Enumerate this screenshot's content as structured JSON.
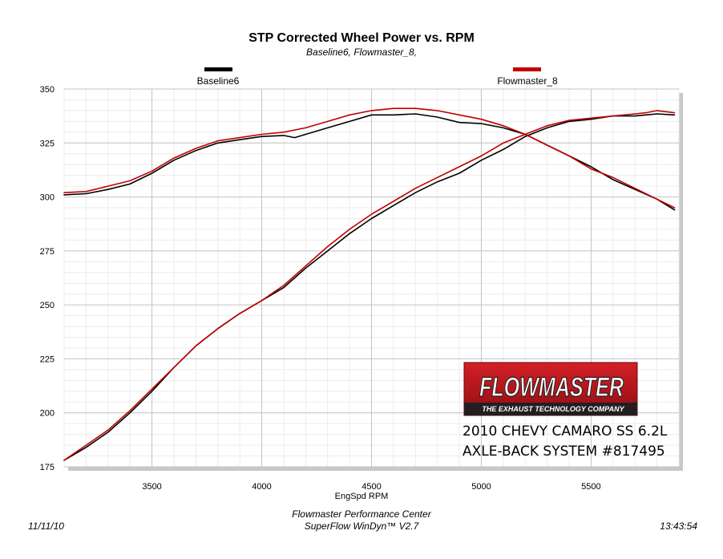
{
  "chart_data": {
    "type": "line",
    "title": "STP Corrected Wheel Power vs. RPM",
    "subtitle": "Baseline6, Flowmaster_8,",
    "xlabel": "EngSpd  RPM",
    "ylabel": "",
    "xlim": [
      3100,
      5900
    ],
    "ylim": [
      175,
      350
    ],
    "x_ticks": [
      3500,
      4000,
      4500,
      5000,
      5500
    ],
    "y_ticks": [
      175,
      200,
      225,
      250,
      275,
      300,
      325,
      350
    ],
    "grid": true,
    "legend_position": "top",
    "series": [
      {
        "name": "Baseline6",
        "color": "#000000",
        "curves": [
          {
            "role": "power",
            "points": [
              [
                3100,
                301
              ],
              [
                3200,
                301.5
              ],
              [
                3300,
                303.5
              ],
              [
                3400,
                306
              ],
              [
                3500,
                311
              ],
              [
                3600,
                317
              ],
              [
                3700,
                321.5
              ],
              [
                3800,
                325
              ],
              [
                3900,
                326.5
              ],
              [
                4000,
                328
              ],
              [
                4100,
                328.5
              ],
              [
                4150,
                327.5
              ],
              [
                4200,
                329
              ],
              [
                4300,
                332
              ],
              [
                4400,
                335
              ],
              [
                4500,
                338
              ],
              [
                4600,
                338
              ],
              [
                4700,
                338.5
              ],
              [
                4800,
                337
              ],
              [
                4900,
                334.5
              ],
              [
                5000,
                334
              ],
              [
                5100,
                332
              ],
              [
                5200,
                329
              ],
              [
                5300,
                324
              ],
              [
                5400,
                319
              ],
              [
                5500,
                314
              ],
              [
                5600,
                308
              ],
              [
                5700,
                303.5
              ],
              [
                5800,
                299
              ],
              [
                5880,
                294
              ]
            ]
          },
          {
            "role": "torque",
            "points": [
              [
                3100,
                178
              ],
              [
                3200,
                184
              ],
              [
                3300,
                191
              ],
              [
                3400,
                200
              ],
              [
                3500,
                210
              ],
              [
                3600,
                221
              ],
              [
                3700,
                231
              ],
              [
                3800,
                239
              ],
              [
                3900,
                246
              ],
              [
                4000,
                252
              ],
              [
                4100,
                258
              ],
              [
                4200,
                267
              ],
              [
                4300,
                275
              ],
              [
                4400,
                283
              ],
              [
                4500,
                290
              ],
              [
                4600,
                296
              ],
              [
                4700,
                302
              ],
              [
                4800,
                307
              ],
              [
                4900,
                311
              ],
              [
                5000,
                317
              ],
              [
                5100,
                322
              ],
              [
                5200,
                328
              ],
              [
                5300,
                332
              ],
              [
                5400,
                335
              ],
              [
                5500,
                336
              ],
              [
                5600,
                337.5
              ],
              [
                5700,
                337.5
              ],
              [
                5750,
                338
              ],
              [
                5800,
                338.5
              ],
              [
                5880,
                338
              ]
            ]
          }
        ]
      },
      {
        "name": "Flowmaster_8",
        "color": "#c00000",
        "curves": [
          {
            "role": "power",
            "points": [
              [
                3100,
                302
              ],
              [
                3200,
                302.5
              ],
              [
                3300,
                305
              ],
              [
                3400,
                307.5
              ],
              [
                3500,
                312
              ],
              [
                3600,
                318
              ],
              [
                3700,
                322.5
              ],
              [
                3800,
                326
              ],
              [
                3900,
                327.5
              ],
              [
                4000,
                329
              ],
              [
                4100,
                330
              ],
              [
                4200,
                332
              ],
              [
                4300,
                335
              ],
              [
                4400,
                338
              ],
              [
                4500,
                340
              ],
              [
                4600,
                341
              ],
              [
                4700,
                341
              ],
              [
                4800,
                340
              ],
              [
                4900,
                338
              ],
              [
                5000,
                336
              ],
              [
                5100,
                333
              ],
              [
                5200,
                329
              ],
              [
                5300,
                324
              ],
              [
                5400,
                319
              ],
              [
                5500,
                313
              ],
              [
                5600,
                309
              ],
              [
                5700,
                304
              ],
              [
                5800,
                299
              ],
              [
                5880,
                295
              ]
            ]
          },
          {
            "role": "torque",
            "points": [
              [
                3100,
                178
              ],
              [
                3200,
                185
              ],
              [
                3300,
                192
              ],
              [
                3400,
                201
              ],
              [
                3500,
                211
              ],
              [
                3600,
                221
              ],
              [
                3700,
                231
              ],
              [
                3800,
                239
              ],
              [
                3900,
                246
              ],
              [
                4000,
                252
              ],
              [
                4100,
                259
              ],
              [
                4200,
                268
              ],
              [
                4300,
                277
              ],
              [
                4400,
                285
              ],
              [
                4500,
                292
              ],
              [
                4600,
                298
              ],
              [
                4700,
                304
              ],
              [
                4800,
                309
              ],
              [
                4900,
                314
              ],
              [
                5000,
                319
              ],
              [
                5100,
                325
              ],
              [
                5200,
                329
              ],
              [
                5300,
                333
              ],
              [
                5400,
                335.5
              ],
              [
                5500,
                336.5
              ],
              [
                5600,
                337.5
              ],
              [
                5700,
                338.5
              ],
              [
                5750,
                339
              ],
              [
                5800,
                340
              ],
              [
                5880,
                339
              ]
            ]
          }
        ]
      }
    ],
    "footer": {
      "date": "11/11/10",
      "center_line1": "Flowmaster Performance Center",
      "center_line2": "SuperFlow WinDyn™ V2.7",
      "time": "13:43:54"
    }
  },
  "logo": {
    "brand": "FLOWMASTER",
    "tagline": "THE EXHAUST TECHNOLOGY COMPANY",
    "colors": {
      "top": "#c0181f",
      "bottom": "#231f20",
      "text": "#ffffff"
    }
  },
  "annotation": {
    "line1": "2010 CHEVY CAMARO SS 6.2L",
    "line2": "AXLE-BACK SYSTEM #817495"
  }
}
